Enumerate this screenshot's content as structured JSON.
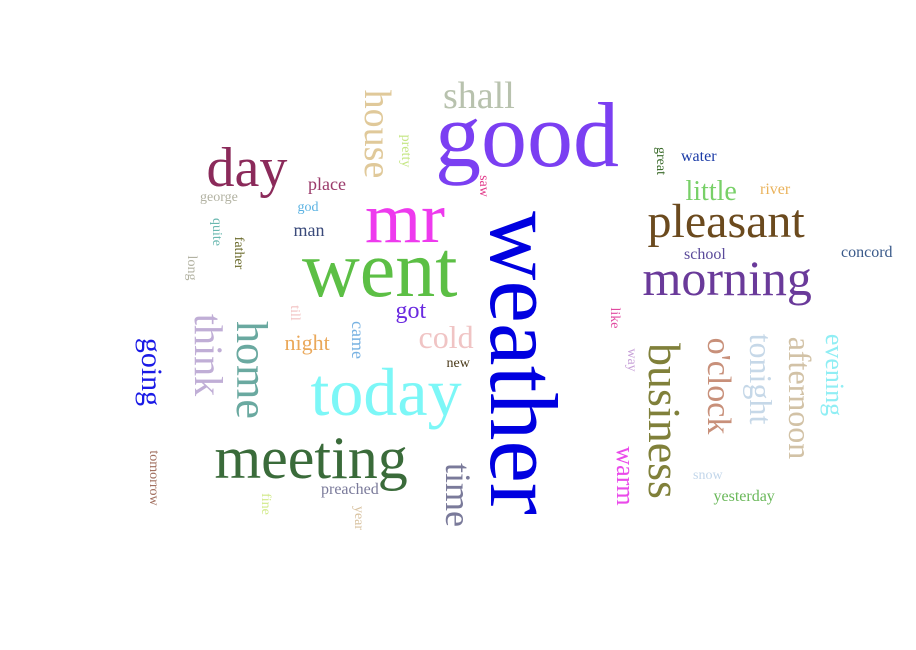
{
  "word_cloud": {
    "words": [
      {
        "text": "weather",
        "color": "#0000e0",
        "vertical": true
      },
      {
        "text": "good",
        "color": "#7b3ff2",
        "vertical": false
      },
      {
        "text": "went",
        "color": "#5cbf45",
        "vertical": false
      },
      {
        "text": "mr",
        "color": "#ee3aee",
        "vertical": false
      },
      {
        "text": "today",
        "color": "#7cf7f7",
        "vertical": false
      },
      {
        "text": "meeting",
        "color": "#3a6b3a",
        "vertical": false
      },
      {
        "text": "day",
        "color": "#8b2a5a",
        "vertical": false
      },
      {
        "text": "morning",
        "color": "#6a3a9a",
        "vertical": false
      },
      {
        "text": "pleasant",
        "color": "#6b4a1e",
        "vertical": false
      },
      {
        "text": "business",
        "color": "#80803a",
        "vertical": true
      },
      {
        "text": "home",
        "color": "#6aa9a0",
        "vertical": true
      },
      {
        "text": "think",
        "color": "#c0aed6",
        "vertical": true
      },
      {
        "text": "house",
        "color": "#e0c99a",
        "vertical": true
      },
      {
        "text": "shall",
        "color": "#b8c2ae",
        "vertical": false
      },
      {
        "text": "time",
        "color": "#7a7a9a",
        "vertical": true
      },
      {
        "text": "o'clock",
        "color": "#c8907a",
        "vertical": true
      },
      {
        "text": "tonight",
        "color": "#c6d8e8",
        "vertical": true
      },
      {
        "text": "afternoon",
        "color": "#d2c2a6",
        "vertical": true
      },
      {
        "text": "cold",
        "color": "#f0c4c4",
        "vertical": false
      },
      {
        "text": "going",
        "color": "#1a1ae6",
        "vertical": true
      },
      {
        "text": "little",
        "color": "#78d068",
        "vertical": false
      },
      {
        "text": "evening",
        "color": "#90eef4",
        "vertical": true
      },
      {
        "text": "warm",
        "color": "#ea4aea",
        "vertical": true
      },
      {
        "text": "got",
        "color": "#6a2ae0",
        "vertical": false
      },
      {
        "text": "night",
        "color": "#eaa85a",
        "vertical": false
      },
      {
        "text": "came",
        "color": "#78b2e2",
        "vertical": true
      },
      {
        "text": "place",
        "color": "#9a3a6a",
        "vertical": false
      },
      {
        "text": "man",
        "color": "#3a4a7a",
        "vertical": false
      },
      {
        "text": "preached",
        "color": "#7a7a9a",
        "vertical": false
      },
      {
        "text": "yesterday",
        "color": "#6ab85a",
        "vertical": false
      },
      {
        "text": "river",
        "color": "#eab25a",
        "vertical": false
      },
      {
        "text": "water",
        "color": "#1a3aa6",
        "vertical": false
      },
      {
        "text": "school",
        "color": "#5a4a9a",
        "vertical": false
      },
      {
        "text": "concord",
        "color": "#3a5a8a",
        "vertical": false
      },
      {
        "text": "great",
        "color": "#3a6a2a",
        "vertical": true
      },
      {
        "text": "george",
        "color": "#b2b2a2",
        "vertical": false
      },
      {
        "text": "god",
        "color": "#5ab2e2",
        "vertical": false
      },
      {
        "text": "quite",
        "color": "#6ab8b0",
        "vertical": true
      },
      {
        "text": "father",
        "color": "#6a6a2a",
        "vertical": true
      },
      {
        "text": "long",
        "color": "#b2b2a2",
        "vertical": true
      },
      {
        "text": "pretty",
        "color": "#c4e682",
        "vertical": true
      },
      {
        "text": "saw",
        "color": "#e23a8a",
        "vertical": true
      },
      {
        "text": "till",
        "color": "#f2c2c2",
        "vertical": true
      },
      {
        "text": "new",
        "color": "#4a3a1a",
        "vertical": false
      },
      {
        "text": "like",
        "color": "#e04aa0",
        "vertical": true
      },
      {
        "text": "way",
        "color": "#c8a2d8",
        "vertical": true
      },
      {
        "text": "snow",
        "color": "#c2d6ea",
        "vertical": false
      },
      {
        "text": "fine",
        "color": "#d2ea8a",
        "vertical": true
      },
      {
        "text": "year",
        "color": "#d8c2a0",
        "vertical": true
      },
      {
        "text": "tomorrow",
        "color": "#a27060",
        "vertical": true
      }
    ]
  }
}
